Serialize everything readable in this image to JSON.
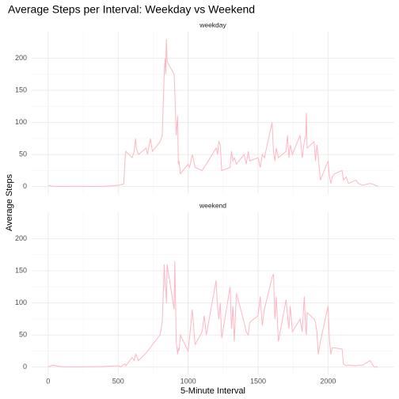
{
  "chart_data": {
    "type": "line",
    "facet": true,
    "grid": true,
    "title": "Average Steps per Interval: Weekday vs Weekend",
    "x_label": "5-Minute Interval",
    "y_label": "Average Steps",
    "xlim": [
      -117.75,
      2472.75
    ],
    "xticks": [
      0,
      500,
      1000,
      1500,
      2000
    ],
    "ylim": [
      -11.5,
      241.5
    ],
    "yticks": [
      0,
      50,
      100,
      150,
      200
    ],
    "x": [
      0,
      30,
      100,
      200,
      300,
      400,
      500,
      520,
      540,
      550,
      555,
      600,
      615,
      625,
      630,
      645,
      700,
      710,
      730,
      745,
      800,
      815,
      830,
      835,
      840,
      845,
      850,
      900,
      905,
      915,
      925,
      930,
      935,
      945,
      1000,
      1010,
      1030,
      1050,
      1100,
      1115,
      1130,
      1200,
      1210,
      1220,
      1230,
      1240,
      1300,
      1310,
      1320,
      1330,
      1345,
      1400,
      1415,
      1430,
      1440,
      1500,
      1515,
      1530,
      1545,
      1600,
      1610,
      1620,
      1630,
      1645,
      1700,
      1710,
      1720,
      1730,
      1745,
      1800,
      1815,
      1830,
      1840,
      1845,
      1850,
      1900,
      1910,
      1920,
      1930,
      1945,
      2000,
      2010,
      2020,
      2030,
      2045,
      2100,
      2110,
      2130,
      2145,
      2200,
      2215,
      2245,
      2300,
      2330,
      2355
    ],
    "series": [
      {
        "name": "weekday",
        "color": "#ffb6c1",
        "values": [
          2,
          0.5,
          0.3,
          0.5,
          0.3,
          0.4,
          2,
          3,
          4,
          45,
          55,
          45,
          55,
          75,
          60,
          50,
          60,
          50,
          75,
          55,
          70,
          80,
          180,
          200,
          175,
          230,
          195,
          175,
          150,
          80,
          110,
          35,
          40,
          20,
          35,
          30,
          50,
          30,
          25,
          30,
          35,
          60,
          50,
          70,
          65,
          25,
          30,
          55,
          40,
          45,
          35,
          50,
          35,
          55,
          40,
          45,
          30,
          50,
          45,
          100,
          55,
          40,
          60,
          45,
          55,
          80,
          45,
          65,
          50,
          80,
          45,
          70,
          80,
          115,
          60,
          70,
          40,
          65,
          45,
          10,
          40,
          15,
          5,
          15,
          20,
          25,
          10,
          15,
          5,
          10,
          5,
          2,
          5,
          3,
          0.5
        ]
      },
      {
        "name": "weekend",
        "color": "#ffb6c1",
        "values": [
          0,
          3,
          0.5,
          0.3,
          0.5,
          1,
          2,
          0.5,
          4,
          5,
          2,
          15,
          10,
          20,
          18,
          10,
          22,
          25,
          30,
          35,
          50,
          70,
          160,
          130,
          120,
          100,
          160,
          90,
          165,
          40,
          20,
          30,
          25,
          50,
          25,
          45,
          90,
          35,
          55,
          80,
          50,
          135,
          95,
          75,
          100,
          45,
          125,
          60,
          95,
          40,
          115,
          70,
          55,
          50,
          70,
          80,
          110,
          65,
          90,
          140,
          145,
          75,
          110,
          40,
          105,
          80,
          60,
          95,
          55,
          75,
          55,
          110,
          60,
          50,
          85,
          75,
          70,
          55,
          20,
          40,
          95,
          40,
          20,
          30,
          30,
          28,
          5,
          2,
          3,
          2,
          3,
          3,
          10,
          0,
          0.5
        ]
      }
    ]
  }
}
